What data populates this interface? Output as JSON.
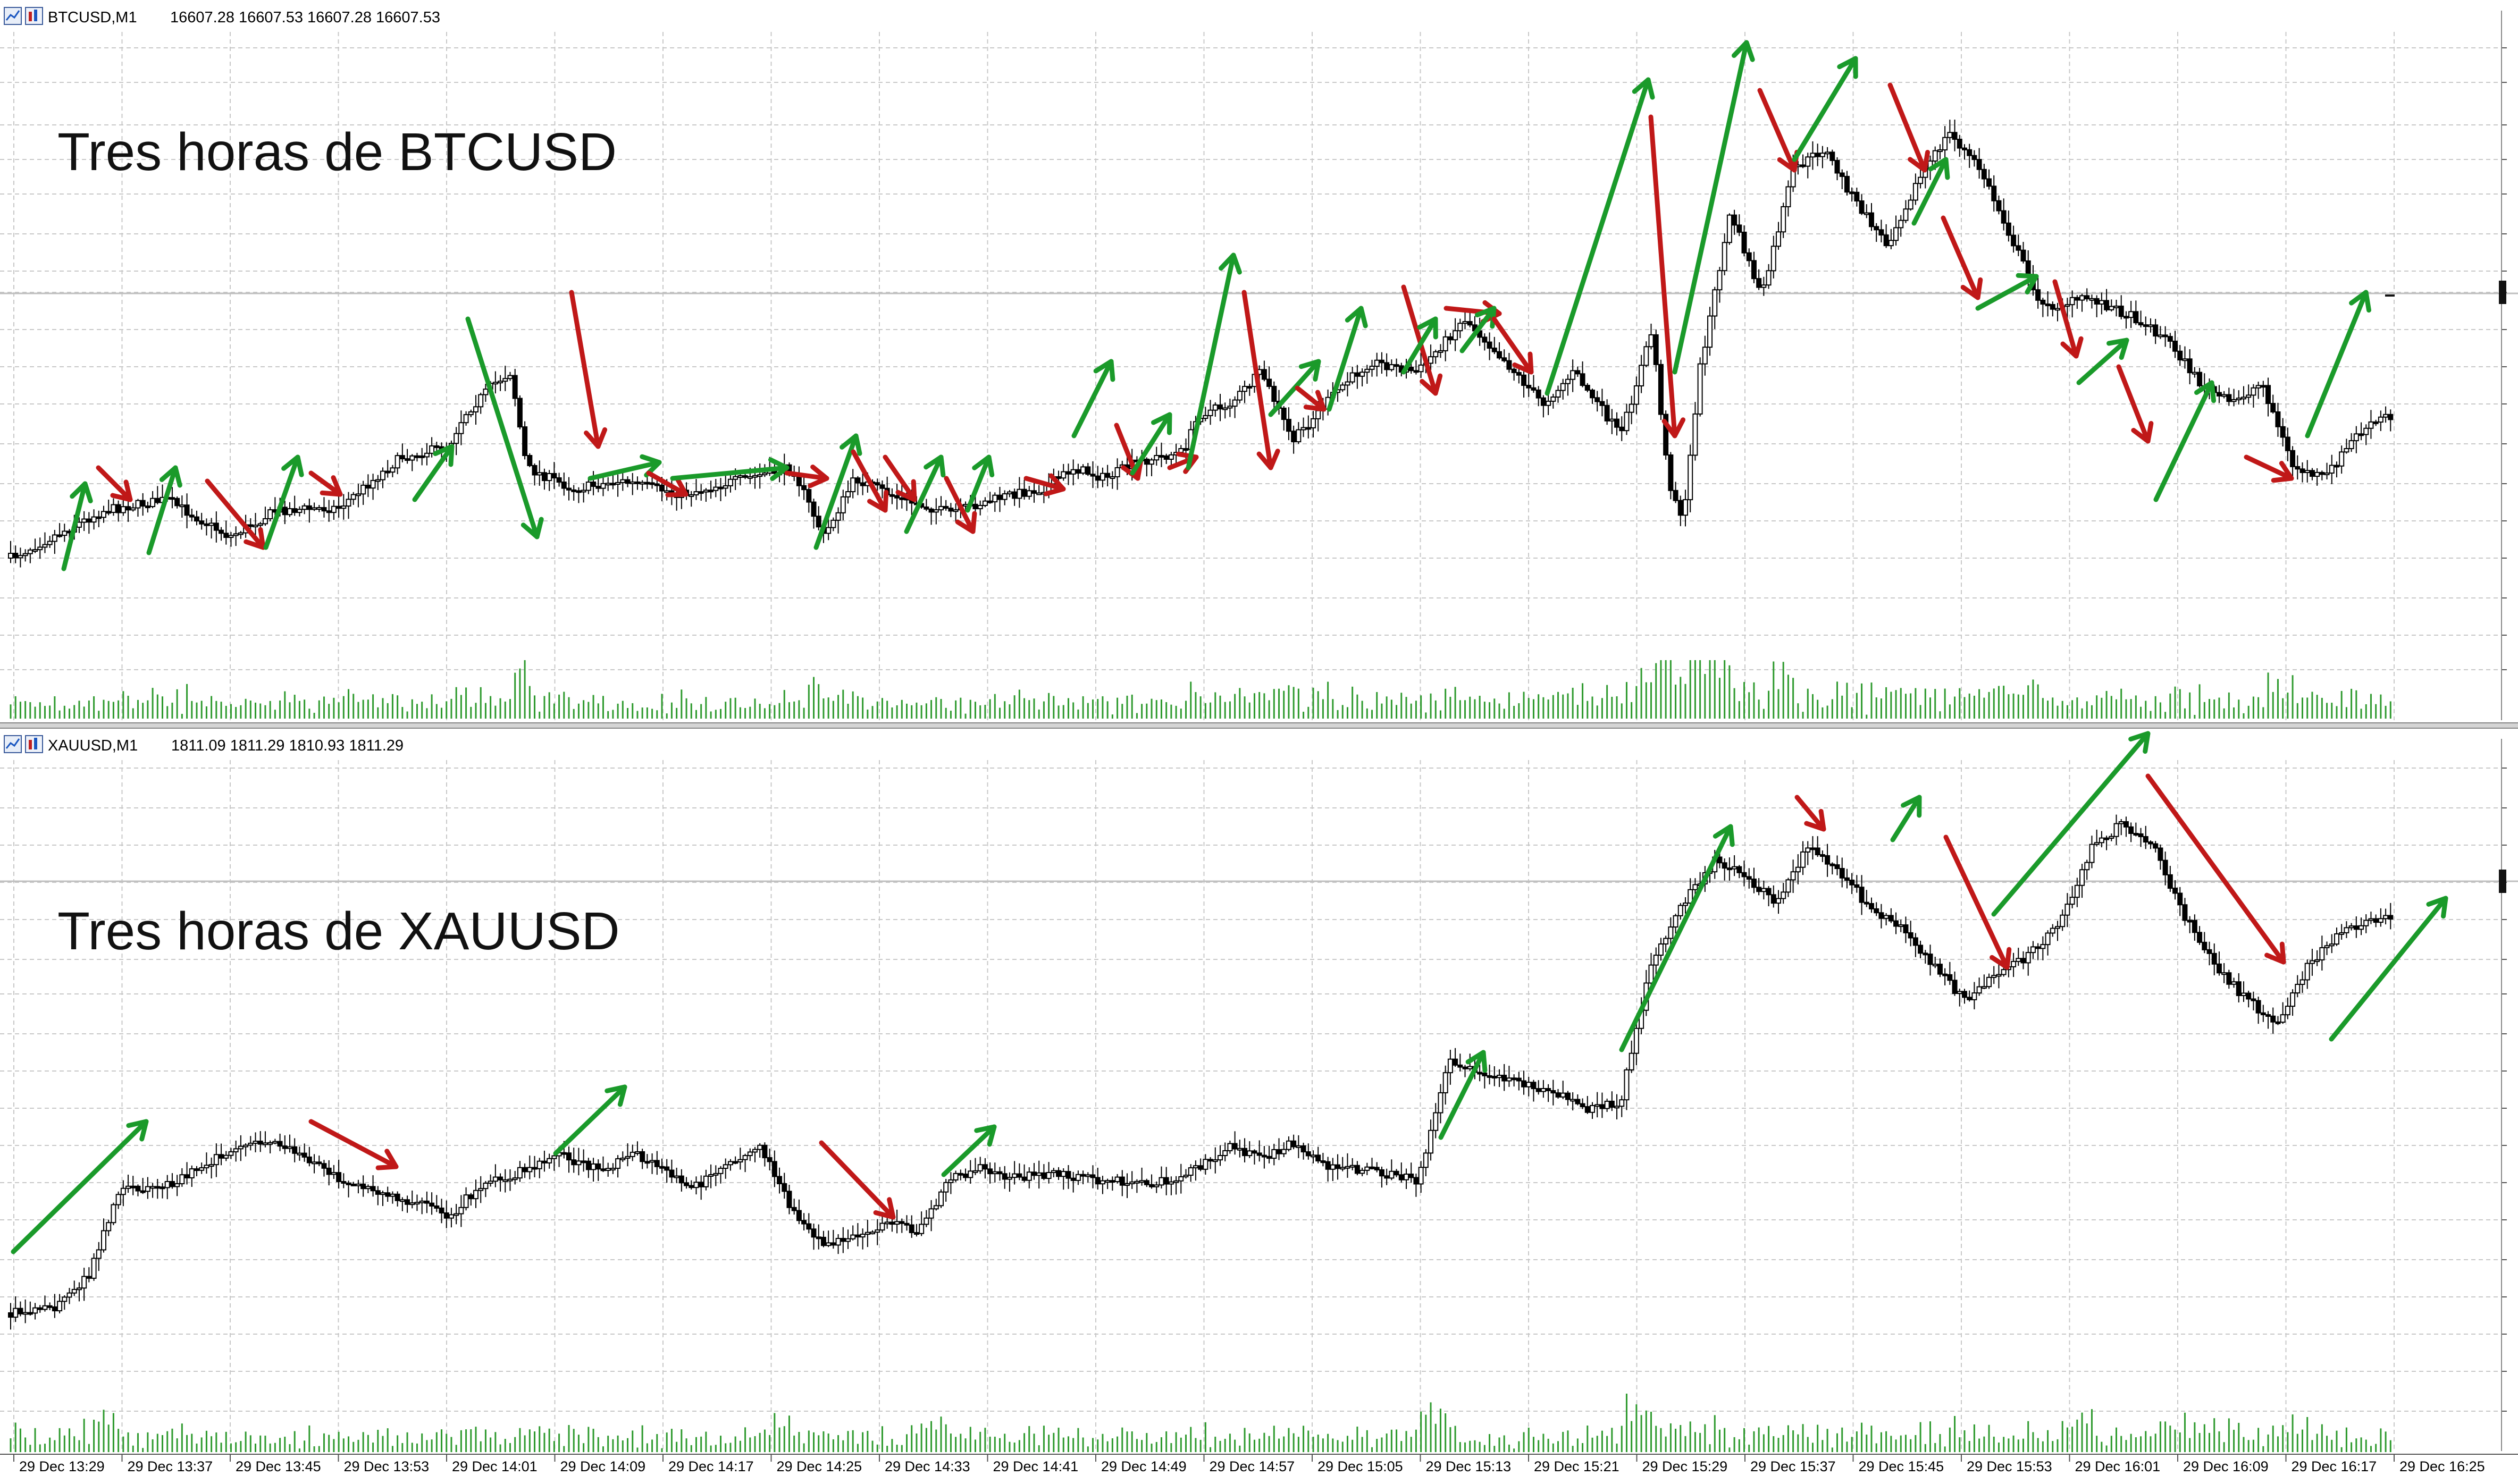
{
  "colors": {
    "background": "#ffffff",
    "grid": "#c8c8c8",
    "candle": "#000000",
    "volume": "#2e9a2e",
    "arrow_up": "#1a9a2a",
    "arrow_down": "#c01818",
    "price_line": "#bfbfbf"
  },
  "icons": [
    "chart-window-icon",
    "chart-type-icon"
  ],
  "chart_data": [
    {
      "type": "candlestick",
      "symbol_header": "BTCUSD,M1",
      "ohlc_header": "16607.28 16607.53 16607.28 16607.53",
      "title": "Tres horas de BTCUSD",
      "timeframe": "M1",
      "last_ohlc": {
        "open": 16607.28,
        "high": 16607.53,
        "low": 16607.28,
        "close": 16607.53
      },
      "volume_bars": true,
      "arrows": {
        "up": "green",
        "down": "red"
      },
      "grid": true
    },
    {
      "type": "candlestick",
      "symbol_header": "XAUUSD,M1",
      "ohlc_header": "1811.09 1811.29 1810.93 1811.29",
      "title": "Tres horas de XAUUSD",
      "timeframe": "M1",
      "last_ohlc": {
        "open": 1811.09,
        "high": 1811.29,
        "low": 1810.93,
        "close": 1811.29
      },
      "volume_bars": true,
      "arrows": {
        "up": "green",
        "down": "red"
      },
      "grid": true
    }
  ],
  "x_axis": {
    "labels": [
      "29 Dec 13:29",
      "29 Dec 13:37",
      "29 Dec 13:45",
      "29 Dec 13:53",
      "29 Dec 14:01",
      "29 Dec 14:09",
      "29 Dec 14:17",
      "29 Dec 14:25",
      "29 Dec 14:33",
      "29 Dec 14:41",
      "29 Dec 14:49",
      "29 Dec 14:57",
      "29 Dec 15:05",
      "29 Dec 15:13",
      "29 Dec 15:21",
      "29 Dec 15:29",
      "29 Dec 15:37",
      "29 Dec 15:45",
      "29 Dec 15:53",
      "29 Dec 16:01",
      "29 Dec 16:09",
      "29 Dec 16:17",
      "29 Dec 16:25"
    ]
  }
}
